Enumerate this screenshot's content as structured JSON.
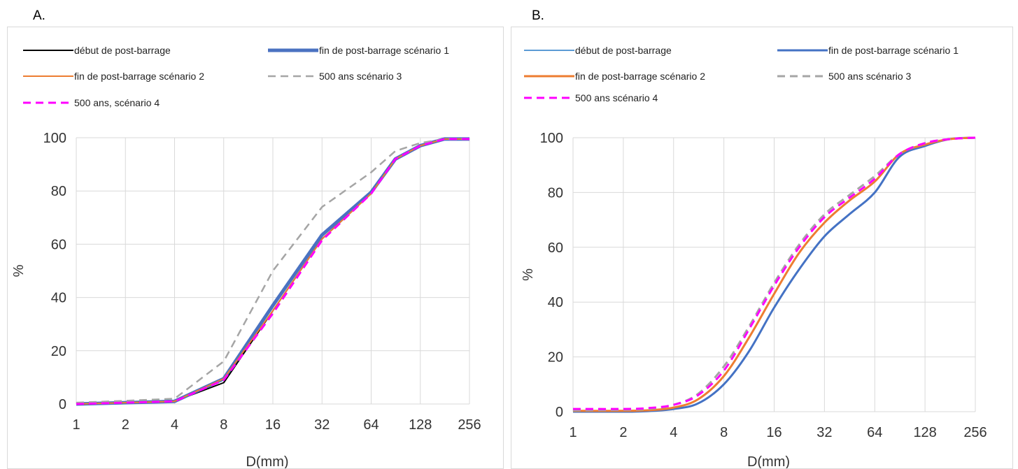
{
  "panels": [
    {
      "label": "A.",
      "chart_data": {
        "type": "line",
        "title": "",
        "xlabel": "D(mm)",
        "ylabel": "%",
        "x_scale": "log2",
        "x_ticks": [
          "1",
          "2",
          "4",
          "8",
          "16",
          "32",
          "64",
          "128",
          "256"
        ],
        "x_tick_values": [
          1,
          2,
          4,
          8,
          16,
          32,
          64,
          128,
          256
        ],
        "y_ticks": [
          "0",
          "20",
          "40",
          "60",
          "80",
          "100"
        ],
        "ylim": [
          0,
          100
        ],
        "xlim": [
          1,
          256
        ],
        "grid": true,
        "legend_position": "top",
        "x": [
          1,
          2,
          4,
          8,
          16,
          32,
          64,
          90,
          128,
          180,
          256
        ],
        "series": [
          {
            "name": "début de post-barrage",
            "color": "#000000",
            "style": "solid",
            "width": 2,
            "values": [
              0,
              0.5,
              1,
              8,
              35,
              62,
              79,
              92,
              97,
              99.5,
              99.5
            ]
          },
          {
            "name": "fin de post-barrage scénario 1",
            "color": "#4a72c1",
            "style": "solid",
            "width": 5,
            "values": [
              0,
              0.5,
              1,
              9.5,
              37,
              63.5,
              79.5,
              92,
              97,
              99.5,
              99.5
            ]
          },
          {
            "name": "fin de post-barrage scénario 2",
            "color": "#ed7d31",
            "style": "solid",
            "width": 2,
            "values": [
              0,
              0.5,
              1,
              9.5,
              35,
              62,
              79,
              92,
              97,
              99.5,
              99.5
            ]
          },
          {
            "name": "500 ans scénario 3",
            "color": "#a5a5a5",
            "style": "dash",
            "width": 2.5,
            "values": [
              0.5,
              1.2,
              2,
              16,
              50,
              74,
              87,
              95,
              98,
              99.5,
              99.5
            ]
          },
          {
            "name": "500 ans, scénario 4",
            "color": "#ff00ff",
            "style": "dash",
            "width": 3,
            "values": [
              0,
              0.5,
              1,
              9,
              34,
              61.5,
              79,
              92,
              97,
              99.5,
              99.5
            ]
          }
        ]
      }
    },
    {
      "label": "B.",
      "chart_data": {
        "type": "line",
        "title": "",
        "xlabel": "D(mm)",
        "ylabel": "%",
        "x_scale": "log2",
        "x_ticks": [
          "1",
          "2",
          "4",
          "8",
          "16",
          "32",
          "64",
          "128",
          "256"
        ],
        "x_tick_values": [
          1,
          2,
          4,
          8,
          16,
          32,
          64,
          128,
          256
        ],
        "y_ticks": [
          "0",
          "20",
          "40",
          "60",
          "80",
          "100"
        ],
        "ylim": [
          0,
          100
        ],
        "xlim": [
          1,
          256
        ],
        "grid": true,
        "legend_position": "top",
        "x": [
          1,
          2,
          2.8,
          4,
          5.6,
          8,
          11.3,
          16,
          22.6,
          32,
          45,
          64,
          90,
          128,
          180,
          256
        ],
        "series": [
          {
            "name": "début de post-barrage",
            "color": "#5b9bd5",
            "style": "solid",
            "width": 2,
            "values": [
              0,
              0,
              0.2,
              1,
              3,
              10,
              22,
              38,
              52,
              64,
              72,
              80,
              93,
              97,
              99.5,
              100
            ]
          },
          {
            "name": "fin de post-barrage scénario 1",
            "color": "#4472c4",
            "style": "solid",
            "width": 3,
            "values": [
              0,
              0,
              0.2,
              1,
              3,
              10,
              22,
              38,
              52,
              64,
              72,
              80,
              93,
              97,
              99.5,
              100
            ]
          },
          {
            "name": "fin de post-barrage scénario 2",
            "color": "#ed7d31",
            "style": "solid",
            "width": 3,
            "values": [
              0.3,
              0.3,
              0.5,
              1.5,
              4.5,
              13,
              27,
              43,
              58,
              69,
              77,
              84,
              94,
              97.5,
              99.5,
              100
            ]
          },
          {
            "name": "500 ans scénario 3",
            "color": "#a5a5a5",
            "style": "dash",
            "width": 3,
            "values": [
              0.5,
              0.7,
              1,
              2.5,
              6.5,
              16.5,
              31,
              47,
              61,
              72,
              79,
              86,
              94,
              98,
              99.5,
              100
            ]
          },
          {
            "name": "500 ans scénario 4",
            "color": "#ff00ff",
            "style": "dash",
            "width": 3,
            "values": [
              1,
              1,
              1.3,
              2.5,
              6,
              15,
              30,
              46,
              60,
              71,
              78,
              85,
              94,
              98,
              99.5,
              100
            ]
          }
        ]
      }
    }
  ]
}
